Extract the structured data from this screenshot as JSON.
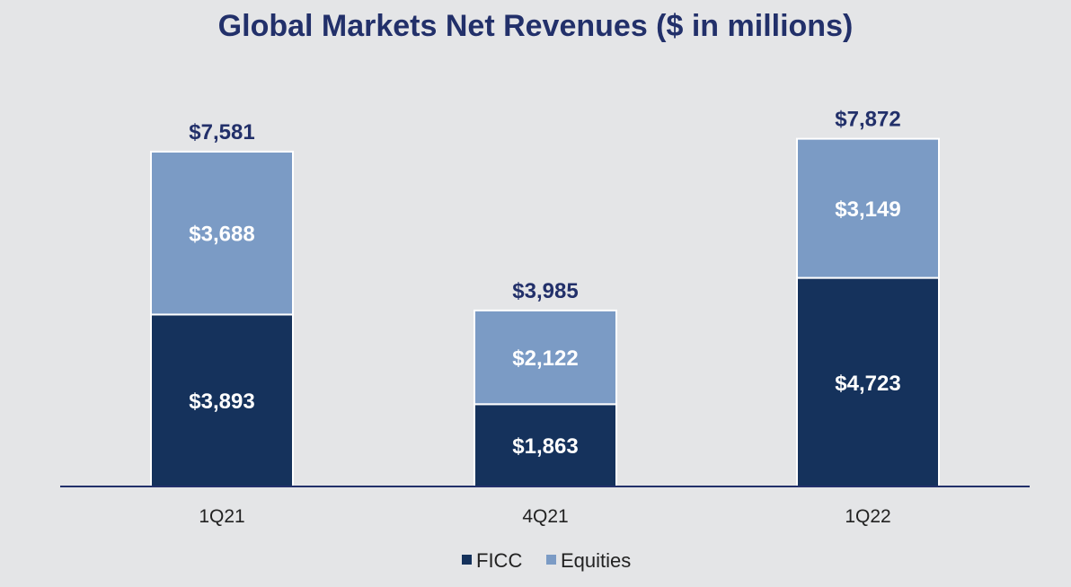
{
  "chart_data": {
    "type": "bar",
    "stacked": true,
    "title": "Global Markets Net Revenues ($ in millions)",
    "categories": [
      "1Q21",
      "4Q21",
      "1Q22"
    ],
    "series": [
      {
        "name": "FICC",
        "values": [
          3893,
          1863,
          4723
        ],
        "labels": [
          "$3,893",
          "$1,863",
          "$4,723"
        ],
        "color": "#15325c"
      },
      {
        "name": "Equities",
        "values": [
          3688,
          2122,
          3149
        ],
        "labels": [
          "$3,688",
          "$2,122",
          "$3,149"
        ],
        "color": "#7b9bc5"
      }
    ],
    "totals": [
      7581,
      3985,
      7872
    ],
    "total_labels": [
      "$7,581",
      "$3,985",
      "$7,872"
    ],
    "ylim": [
      0,
      8000
    ],
    "legend_position": "bottom-center",
    "grid": false,
    "axis_color": "#22306a",
    "background": "#e4e5e7"
  }
}
